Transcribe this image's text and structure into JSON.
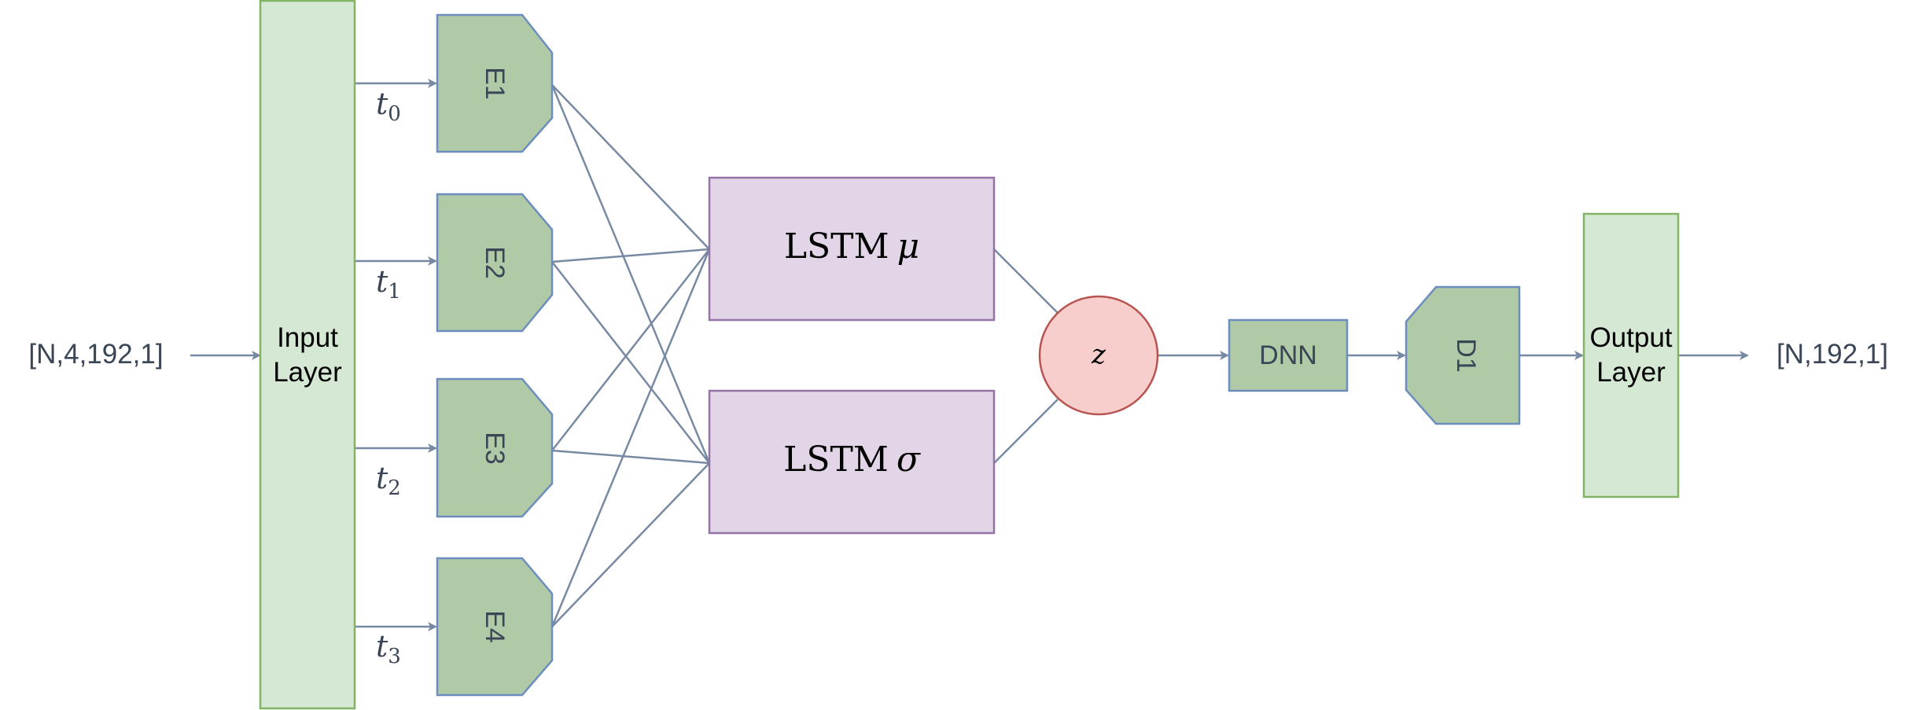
{
  "input_shape": "[N,4,192,1]",
  "output_shape": "[N,192,1]",
  "input_layer": {
    "line1": "Input",
    "line2": "Layer"
  },
  "output_layer": {
    "line1": "Output",
    "line2": "Layer"
  },
  "time_labels": [
    {
      "var": "t",
      "sub": "0"
    },
    {
      "var": "t",
      "sub": "1"
    },
    {
      "var": "t",
      "sub": "2"
    },
    {
      "var": "t",
      "sub": "3"
    }
  ],
  "encoders": [
    "E1",
    "E2",
    "E3",
    "E4"
  ],
  "lstm_mu": {
    "name": "LSTM",
    "symbol": "μ"
  },
  "lstm_sigma": {
    "name": "LSTM",
    "symbol": "σ"
  },
  "latent": "z",
  "dnn": "DNN",
  "decoder": "D1",
  "colors": {
    "layer_fill": "#d5e8d4",
    "layer_stroke": "#82b366",
    "encoder_fill": "#b0c9a6",
    "encoder_stroke": "#6c8ebf",
    "lstm_fill": "#e1d5e7",
    "lstm_stroke": "#9673a6",
    "z_fill": "#f8cecc",
    "z_stroke": "#b85450",
    "connector": "#788aa3",
    "text": "#3a4556"
  }
}
